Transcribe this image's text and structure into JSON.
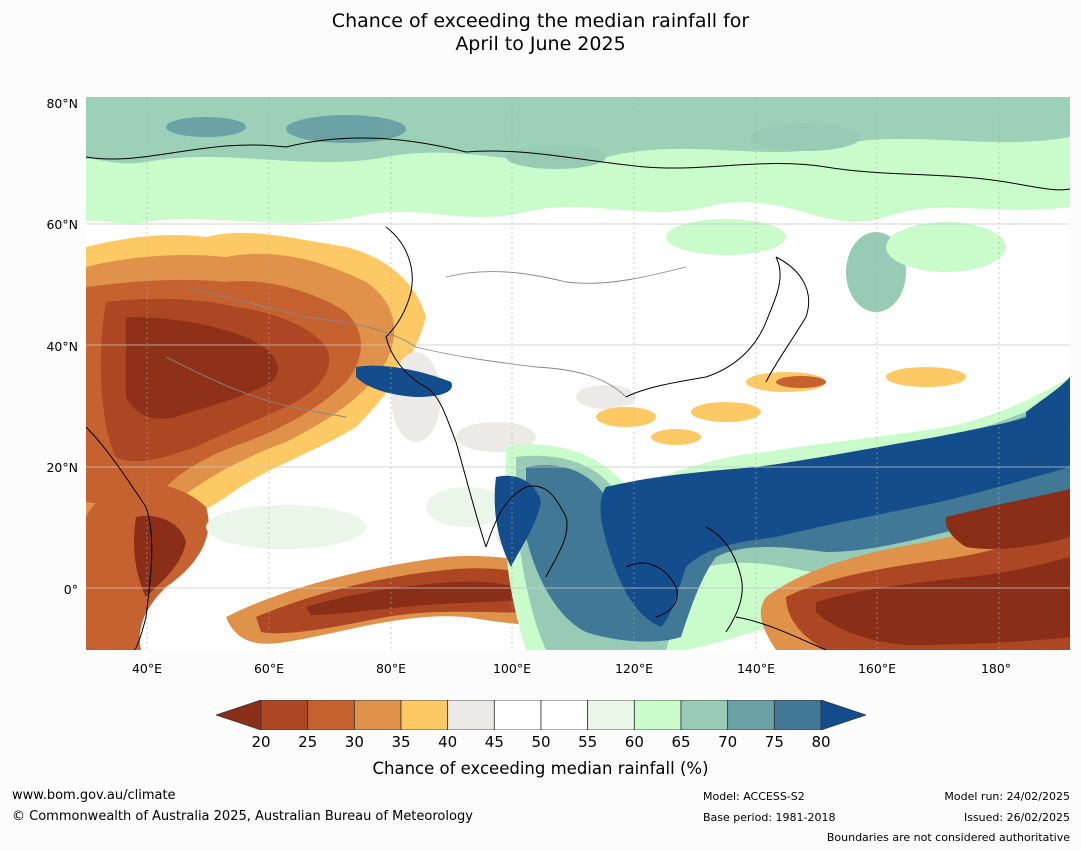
{
  "title_line1": "Chance of exceeding the median rainfall for",
  "title_line2": "April to June 2025",
  "lat_labels": [
    "80°N",
    "60°N",
    "40°N",
    "20°N",
    "0°"
  ],
  "lon_labels": [
    "40°E",
    "60°E",
    "80°E",
    "100°E",
    "120°E",
    "140°E",
    "160°E",
    "180°"
  ],
  "legend": {
    "title": "Chance of exceeding median rainfall (%)",
    "ticks": [
      "20",
      "25",
      "30",
      "35",
      "40",
      "45",
      "50",
      "55",
      "60",
      "65",
      "70",
      "75",
      "80"
    ],
    "colors": [
      "#8a2e17",
      "#ad4622",
      "#c5622f",
      "#e0924a",
      "#fdc964",
      "#eceae6",
      "#ffffff",
      "#ffffff",
      "#e9f6e8",
      "#c9fbcb",
      "#97cbb5",
      "#6aa2a5",
      "#417896",
      "#134d8b"
    ]
  },
  "footer": {
    "website": "www.bom.gov.au/climate",
    "copyright": "© Commonwealth of Australia 2025, Australian Bureau of Meteorology",
    "model": "Model: ACCESS-S2",
    "base_period": "Base period: 1981-2018",
    "model_run": "Model run: 24/02/2025",
    "issued": "Issued: 26/02/2025",
    "disclaimer": "Boundaries are not considered authoritative"
  }
}
